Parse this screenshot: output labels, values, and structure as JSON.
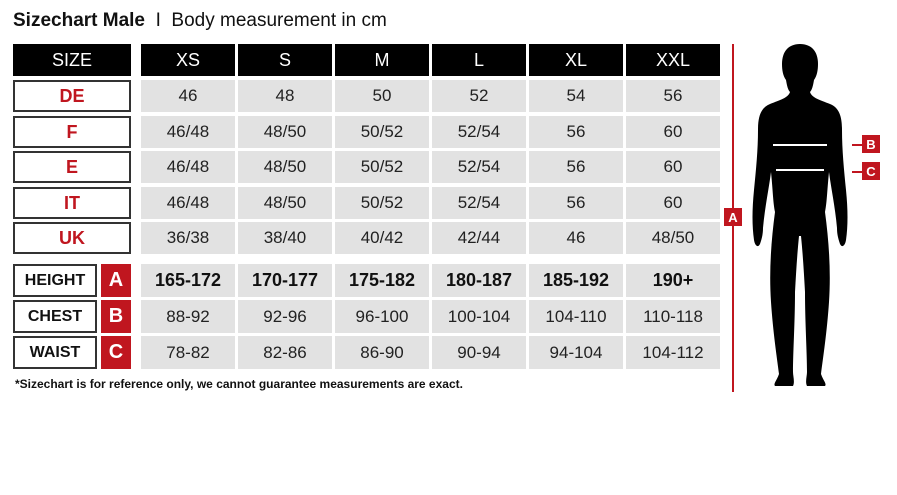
{
  "title": {
    "bold": "Sizechart Male",
    "separator": "I",
    "subtitle": "Body measurement in cm"
  },
  "size_header": "SIZE",
  "sizes": [
    "XS",
    "S",
    "M",
    "L",
    "XL",
    "XXL"
  ],
  "conversion_rows": [
    {
      "label": "DE",
      "values": [
        "46",
        "48",
        "50",
        "52",
        "54",
        "56"
      ]
    },
    {
      "label": "F",
      "values": [
        "46/48",
        "48/50",
        "50/52",
        "52/54",
        "56",
        "60"
      ]
    },
    {
      "label": "E",
      "values": [
        "46/48",
        "48/50",
        "50/52",
        "52/54",
        "56",
        "60"
      ]
    },
    {
      "label": "IT",
      "values": [
        "46/48",
        "48/50",
        "50/52",
        "52/54",
        "56",
        "60"
      ]
    },
    {
      "label": "UK",
      "values": [
        "36/38",
        "38/40",
        "40/42",
        "42/44",
        "46",
        "48/50"
      ]
    }
  ],
  "measurement_rows": [
    {
      "label": "HEIGHT",
      "letter": "A",
      "values": [
        "165-172",
        "170-177",
        "175-182",
        "180-187",
        "185-192",
        "190+"
      ]
    },
    {
      "label": "CHEST",
      "letter": "B",
      "values": [
        "88-92",
        "92-96",
        "96-100",
        "100-104",
        "104-110",
        "110-118"
      ]
    },
    {
      "label": "WAIST",
      "letter": "C",
      "values": [
        "78-82",
        "82-86",
        "86-90",
        "90-94",
        "94-104",
        "104-112"
      ]
    }
  ],
  "note": "*Sizechart is for reference only, we cannot guarantee measurements are exact.",
  "figure": {
    "height_marker": "A",
    "chest_marker": "B",
    "waist_marker": "C"
  },
  "colors": {
    "accent": "#c0161f",
    "header": "#000000",
    "cell": "#e2e2e2"
  }
}
